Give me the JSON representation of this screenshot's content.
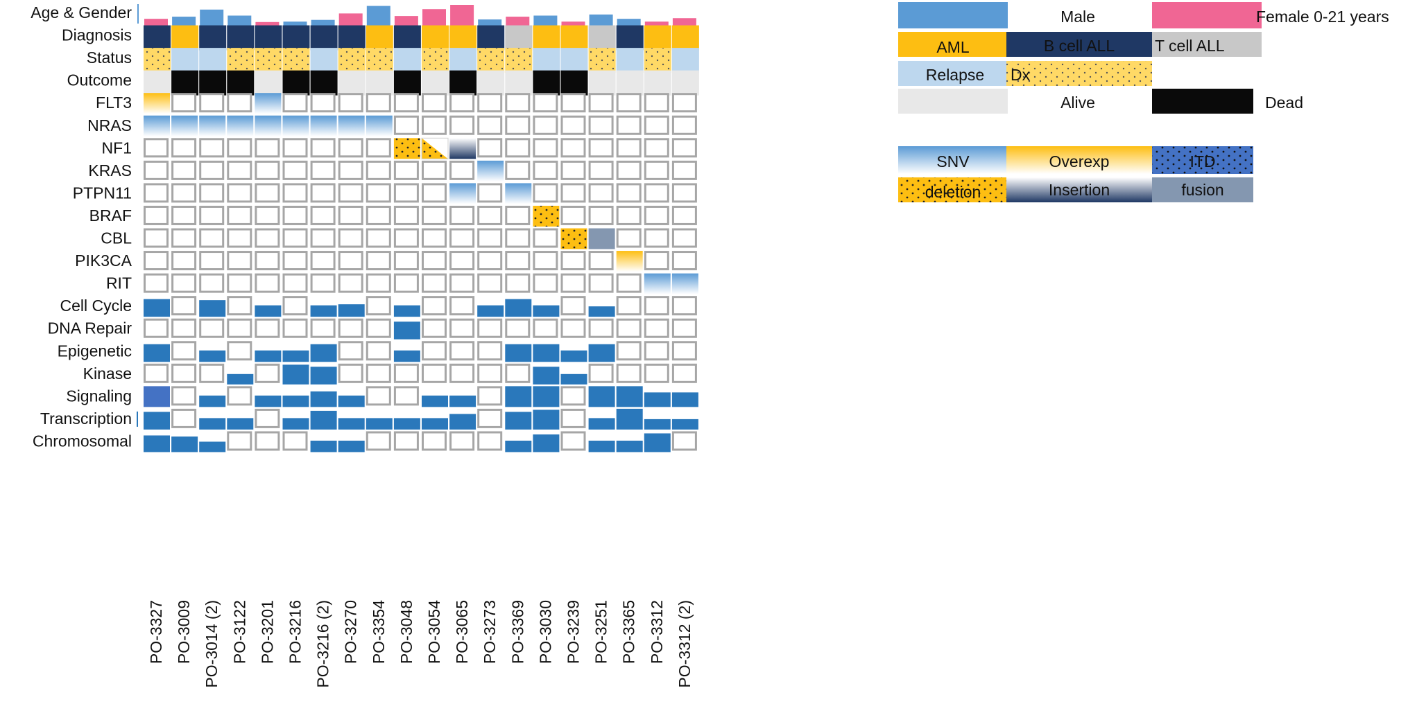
{
  "chart_data": {
    "type": "heatmap",
    "title": "",
    "samples": [
      "PO-3327",
      "PO-3009",
      "PO-3014 (2)",
      "PO-3122",
      "PO-3201",
      "PO-3216",
      "PO-3216 (2)",
      "PO-3270",
      "PO-3354",
      "PO-3048",
      "PO-3054",
      "PO-3065",
      "PO-3273",
      "PO-3369",
      "PO-3030",
      "PO-3239",
      "PO-3251",
      "PO-3365",
      "PO-3312",
      "PO-3312 (2)"
    ],
    "rows": [
      "Age & Gender",
      "Diagnosis",
      "Status",
      "Outcome",
      "FLT3",
      "NRAS",
      "NF1",
      "KRAS",
      "PTPN11",
      "BRAF",
      "CBL",
      "PIK3CA",
      "RIT",
      "Cell Cycle",
      "DNA Repair",
      "Epigenetic",
      "Kinase",
      "Signaling",
      "Transcription",
      "Chromosomal"
    ],
    "age_gender": {
      "gender": [
        "Female",
        "Male",
        "Male",
        "Male",
        "Female",
        "Male",
        "Male",
        "Female",
        "Male",
        "Female",
        "Female",
        "Female",
        "Male",
        "Female",
        "Male",
        "Female",
        "Male",
        "Male",
        "Female",
        "Female"
      ],
      "age_0_21": [
        0.35,
        0.45,
        0.78,
        0.5,
        0.2,
        0.22,
        0.3,
        0.6,
        0.95,
        0.48,
        0.8,
        1.0,
        0.32,
        0.45,
        0.5,
        0.22,
        0.55,
        0.35,
        0.22,
        0.38
      ]
    },
    "diagnosis": [
      "B cell ALL",
      "AML",
      "B cell ALL",
      "B cell ALL",
      "B cell ALL",
      "B cell ALL",
      "B cell ALL",
      "B cell ALL",
      "AML",
      "B cell ALL",
      "AML",
      "AML",
      "B cell ALL",
      "T cell ALL",
      "AML",
      "AML",
      "T cell ALL",
      "B cell ALL",
      "AML",
      "AML"
    ],
    "status": [
      "Dx",
      "Relapse",
      "Relapse",
      "Dx",
      "Dx",
      "Dx",
      "Relapse",
      "Dx",
      "Dx",
      "Relapse",
      "Dx",
      "Relapse",
      "Dx",
      "Dx",
      "Relapse",
      "Relapse",
      "Dx",
      "Relapse",
      "Dx",
      "Relapse"
    ],
    "outcome": [
      "Alive",
      "Dead",
      "Dead",
      "Dead",
      "Alive",
      "Dead",
      "Dead",
      "Alive",
      "Alive",
      "Dead",
      "Alive",
      "Dead",
      "Alive",
      "Alive",
      "Dead",
      "Dead",
      "Alive",
      "Alive",
      "Alive",
      "Alive"
    ],
    "mutations": {
      "FLT3": {
        "0": "Overexp",
        "4": "SNV"
      },
      "NRAS": {
        "0": "SNV",
        "1": "SNV",
        "2": "SNV",
        "3": "SNV",
        "4": "SNV",
        "5": "SNV",
        "6": "SNV",
        "7": "SNV",
        "8": "SNV"
      },
      "NF1": {
        "9": "deletion",
        "10": "deletion+Overexp",
        "11": "Insertion"
      },
      "KRAS": {
        "12": "SNV"
      },
      "PTPN11": {
        "11": "SNV",
        "13": "SNV"
      },
      "BRAF": {
        "14": "deletion"
      },
      "CBL": {
        "15": "deletion",
        "16": "fusion"
      },
      "PIK3CA": {
        "17": "Overexp"
      },
      "RIT": {
        "18": "SNV",
        "19": "SNV"
      }
    },
    "pathways": {
      "Cell Cycle": [
        0.85,
        0,
        0.8,
        0,
        0.55,
        0,
        0.55,
        0.6,
        0,
        0.55,
        0,
        0,
        0.55,
        0.85,
        0.55,
        0,
        0.5,
        0,
        0,
        0
      ],
      "DNA Repair": [
        0,
        0,
        0,
        0,
        0,
        0,
        0,
        0,
        0,
        0.85,
        0,
        0,
        0,
        0,
        0,
        0,
        0,
        0,
        0,
        0
      ],
      "Epigenetic": [
        0.85,
        0,
        0.55,
        0,
        0.55,
        0.55,
        0.85,
        0,
        0,
        0.55,
        0,
        0,
        0,
        0.85,
        0.85,
        0.55,
        0.85,
        0,
        0,
        0
      ],
      "Kinase": [
        0,
        0,
        0,
        0.5,
        0,
        0.95,
        0.85,
        0,
        0,
        0,
        0,
        0,
        0,
        0,
        0.85,
        0.5,
        0,
        0,
        0,
        0
      ],
      "Signaling": [
        1.0,
        0,
        0.55,
        0,
        0.55,
        0.55,
        0.75,
        0.55,
        0,
        0,
        0.55,
        0.55,
        0,
        1.0,
        1.0,
        0,
        1.0,
        1.0,
        0.7,
        0.7
      ],
      "Transcription": [
        0.85,
        0,
        0.55,
        0.55,
        0,
        0.55,
        0.9,
        0.55,
        0.55,
        0.55,
        0.55,
        0.75,
        0,
        0.85,
        0.95,
        0,
        0.55,
        1.0,
        0.5,
        0.5
      ],
      "Chromosomal": [
        0.8,
        0.75,
        0.5,
        0,
        0,
        0,
        0.55,
        0.55,
        0,
        0,
        0,
        0,
        0,
        0.55,
        0.85,
        0,
        0.55,
        0.55,
        0.9,
        0
      ]
    },
    "legend": {
      "male": "Male",
      "female": "Female 0-21 years",
      "aml": "AML",
      "ball": "B cell ALL",
      "tall": "T cell ALL",
      "relapse": "Relapse",
      "dx": "Dx",
      "alive": "Alive",
      "dead": "Dead",
      "snv": "SNV",
      "overexp": "Overexp",
      "itd": "ITD",
      "deletion": "deletion",
      "insertion": "Insertion",
      "fusion": "fusion"
    },
    "colors": {
      "male": "#5b9bd5",
      "female": "#f06694",
      "aml": "#fdbe12",
      "ball": "#1f3864",
      "tall": "#c8c8c8",
      "relapse": "#bdd7ee",
      "dx": "#ffd966",
      "alive": "#e8e8e8",
      "dead": "#0a0a0a",
      "pathway": "#2a78bb",
      "cellborder": "#a6a6a6",
      "itd": "#4472c4",
      "fusion": "#8497b0"
    }
  }
}
